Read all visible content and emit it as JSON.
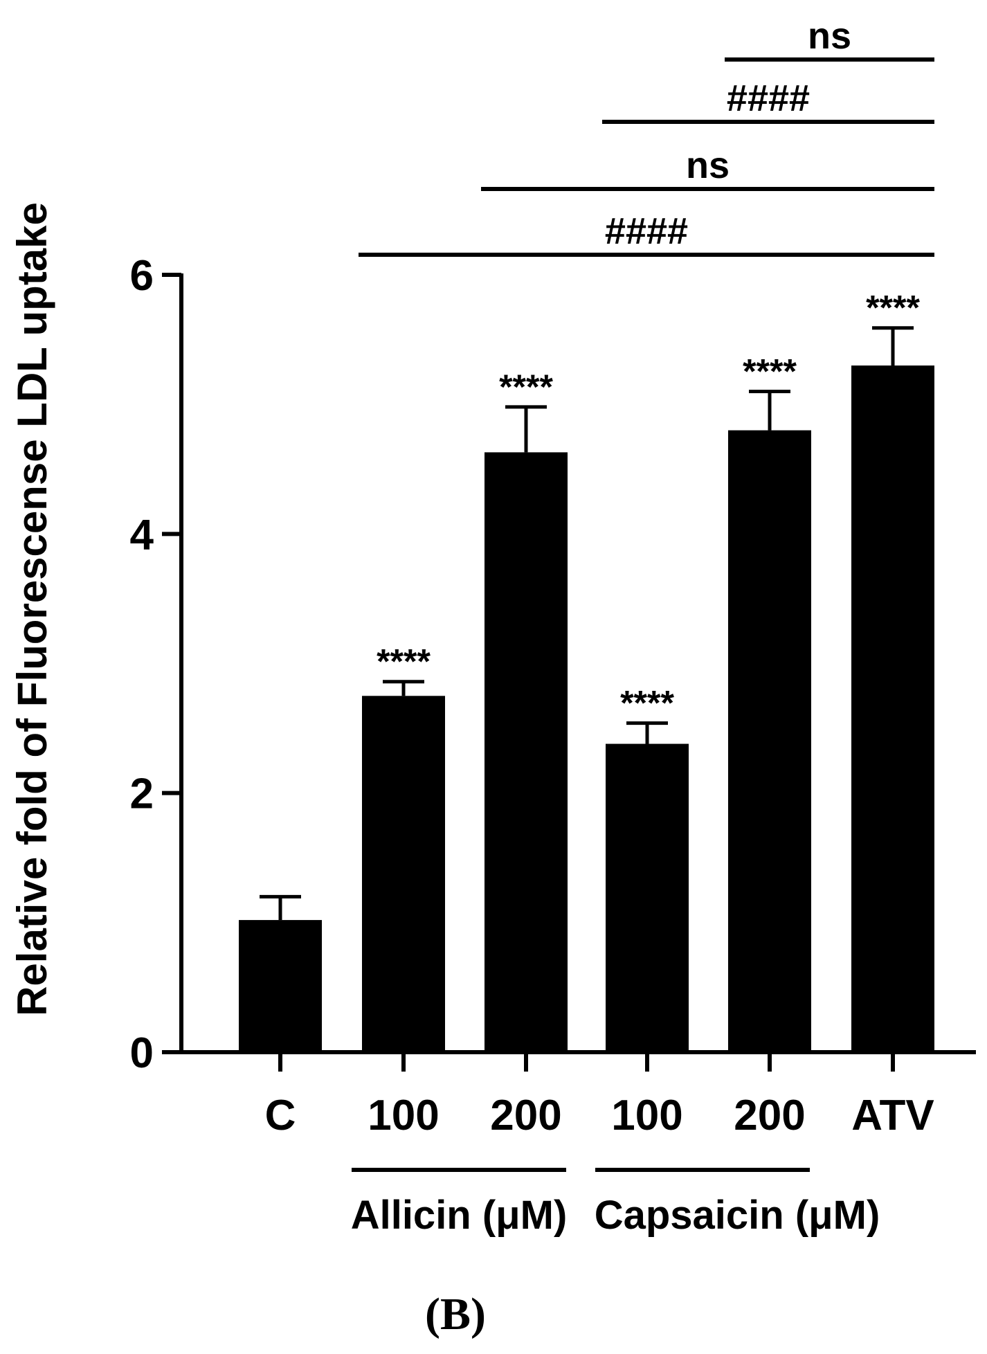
{
  "chart_data": {
    "type": "bar",
    "title": "",
    "xlabel": "",
    "ylabel": "Relative fold of Fluorescense LDL uptake",
    "ylim": [
      0,
      6
    ],
    "yticks": [
      0,
      2,
      4,
      6
    ],
    "ytick_labels": [
      "0",
      "2",
      "4",
      "6"
    ],
    "categories": [
      "C",
      "100",
      "200",
      "100",
      "200",
      "ATV"
    ],
    "values": [
      1.02,
      2.75,
      4.63,
      2.38,
      4.8,
      5.3
    ],
    "errors": [
      0.18,
      0.11,
      0.35,
      0.16,
      0.3,
      0.29
    ],
    "bar_annotations": [
      "",
      "****",
      "****",
      "****",
      "****",
      "****"
    ],
    "groups": [
      {
        "label": "Allicin (μM)",
        "start": 1,
        "end": 2
      },
      {
        "label": "Capsaicin (μM)",
        "start": 3,
        "end": 4
      }
    ],
    "comparisons": [
      {
        "from": 1,
        "to": 5,
        "label": "####"
      },
      {
        "from": 2,
        "to": 5,
        "label": "ns"
      },
      {
        "from": 3,
        "to": 5,
        "label": "####"
      },
      {
        "from": 4,
        "to": 5,
        "label": "ns"
      }
    ],
    "bar_color": "#000000",
    "grid": false,
    "legend": "none"
  },
  "panel_label": "(B)"
}
